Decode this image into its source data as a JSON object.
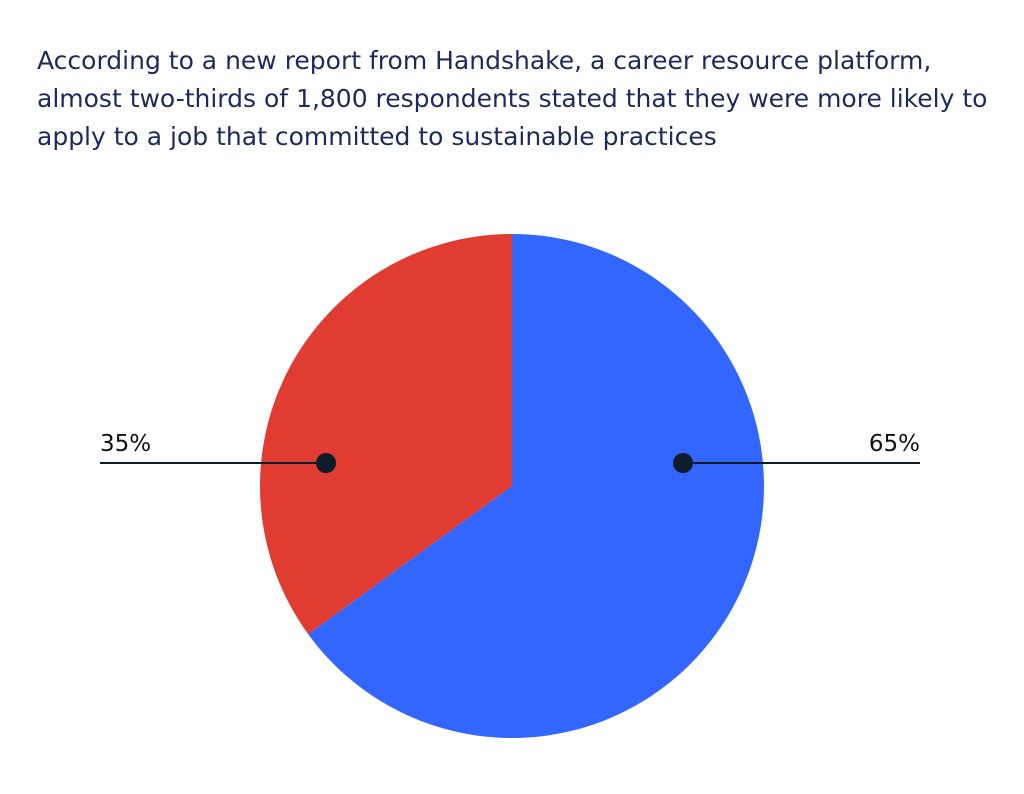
{
  "chart_data": {
    "type": "pie",
    "title": "According to a new report from Handshake, a career resource platform, almost two-thirds of 1,800 respondents stated that they were more likely to apply to a job that committed to sustainable practices",
    "values": [
      65,
      35
    ],
    "value_labels": [
      "65%",
      "35%"
    ],
    "colors": [
      "#3366ff",
      "#e03c31"
    ]
  }
}
